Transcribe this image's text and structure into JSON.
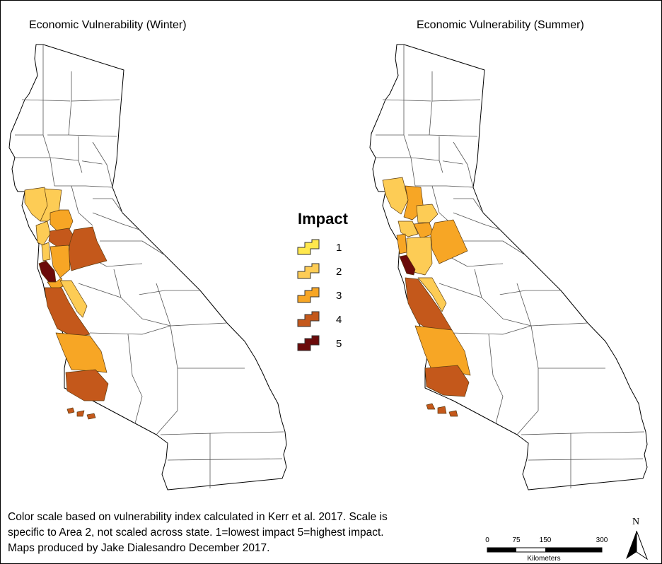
{
  "maps": [
    {
      "title": "Economic Vulnerability (Winter)"
    },
    {
      "title": "Economic Vulnerability (Summer)"
    }
  ],
  "legend": {
    "title": "Impact",
    "items": [
      {
        "label": "1",
        "color": "#ffe84d"
      },
      {
        "label": "2",
        "color": "#fdcc55"
      },
      {
        "label": "3",
        "color": "#f7a625"
      },
      {
        "label": "4",
        "color": "#c4581b"
      },
      {
        "label": "5",
        "color": "#6b0a0a"
      }
    ]
  },
  "footer": {
    "lines": [
      "Color scale based on vulnerability index calculated in Kerr et al. 2017. Scale is",
      "specific to Area 2, not scaled across state. 1=lowest impact 5=highest impact.",
      "Maps produced by Jake Dialesandro December 2017."
    ]
  },
  "scale_bar": {
    "ticks": [
      "0",
      "75",
      "150",
      "300"
    ],
    "unit": "Kilometers"
  },
  "north_arrow": {
    "label": "N"
  }
}
